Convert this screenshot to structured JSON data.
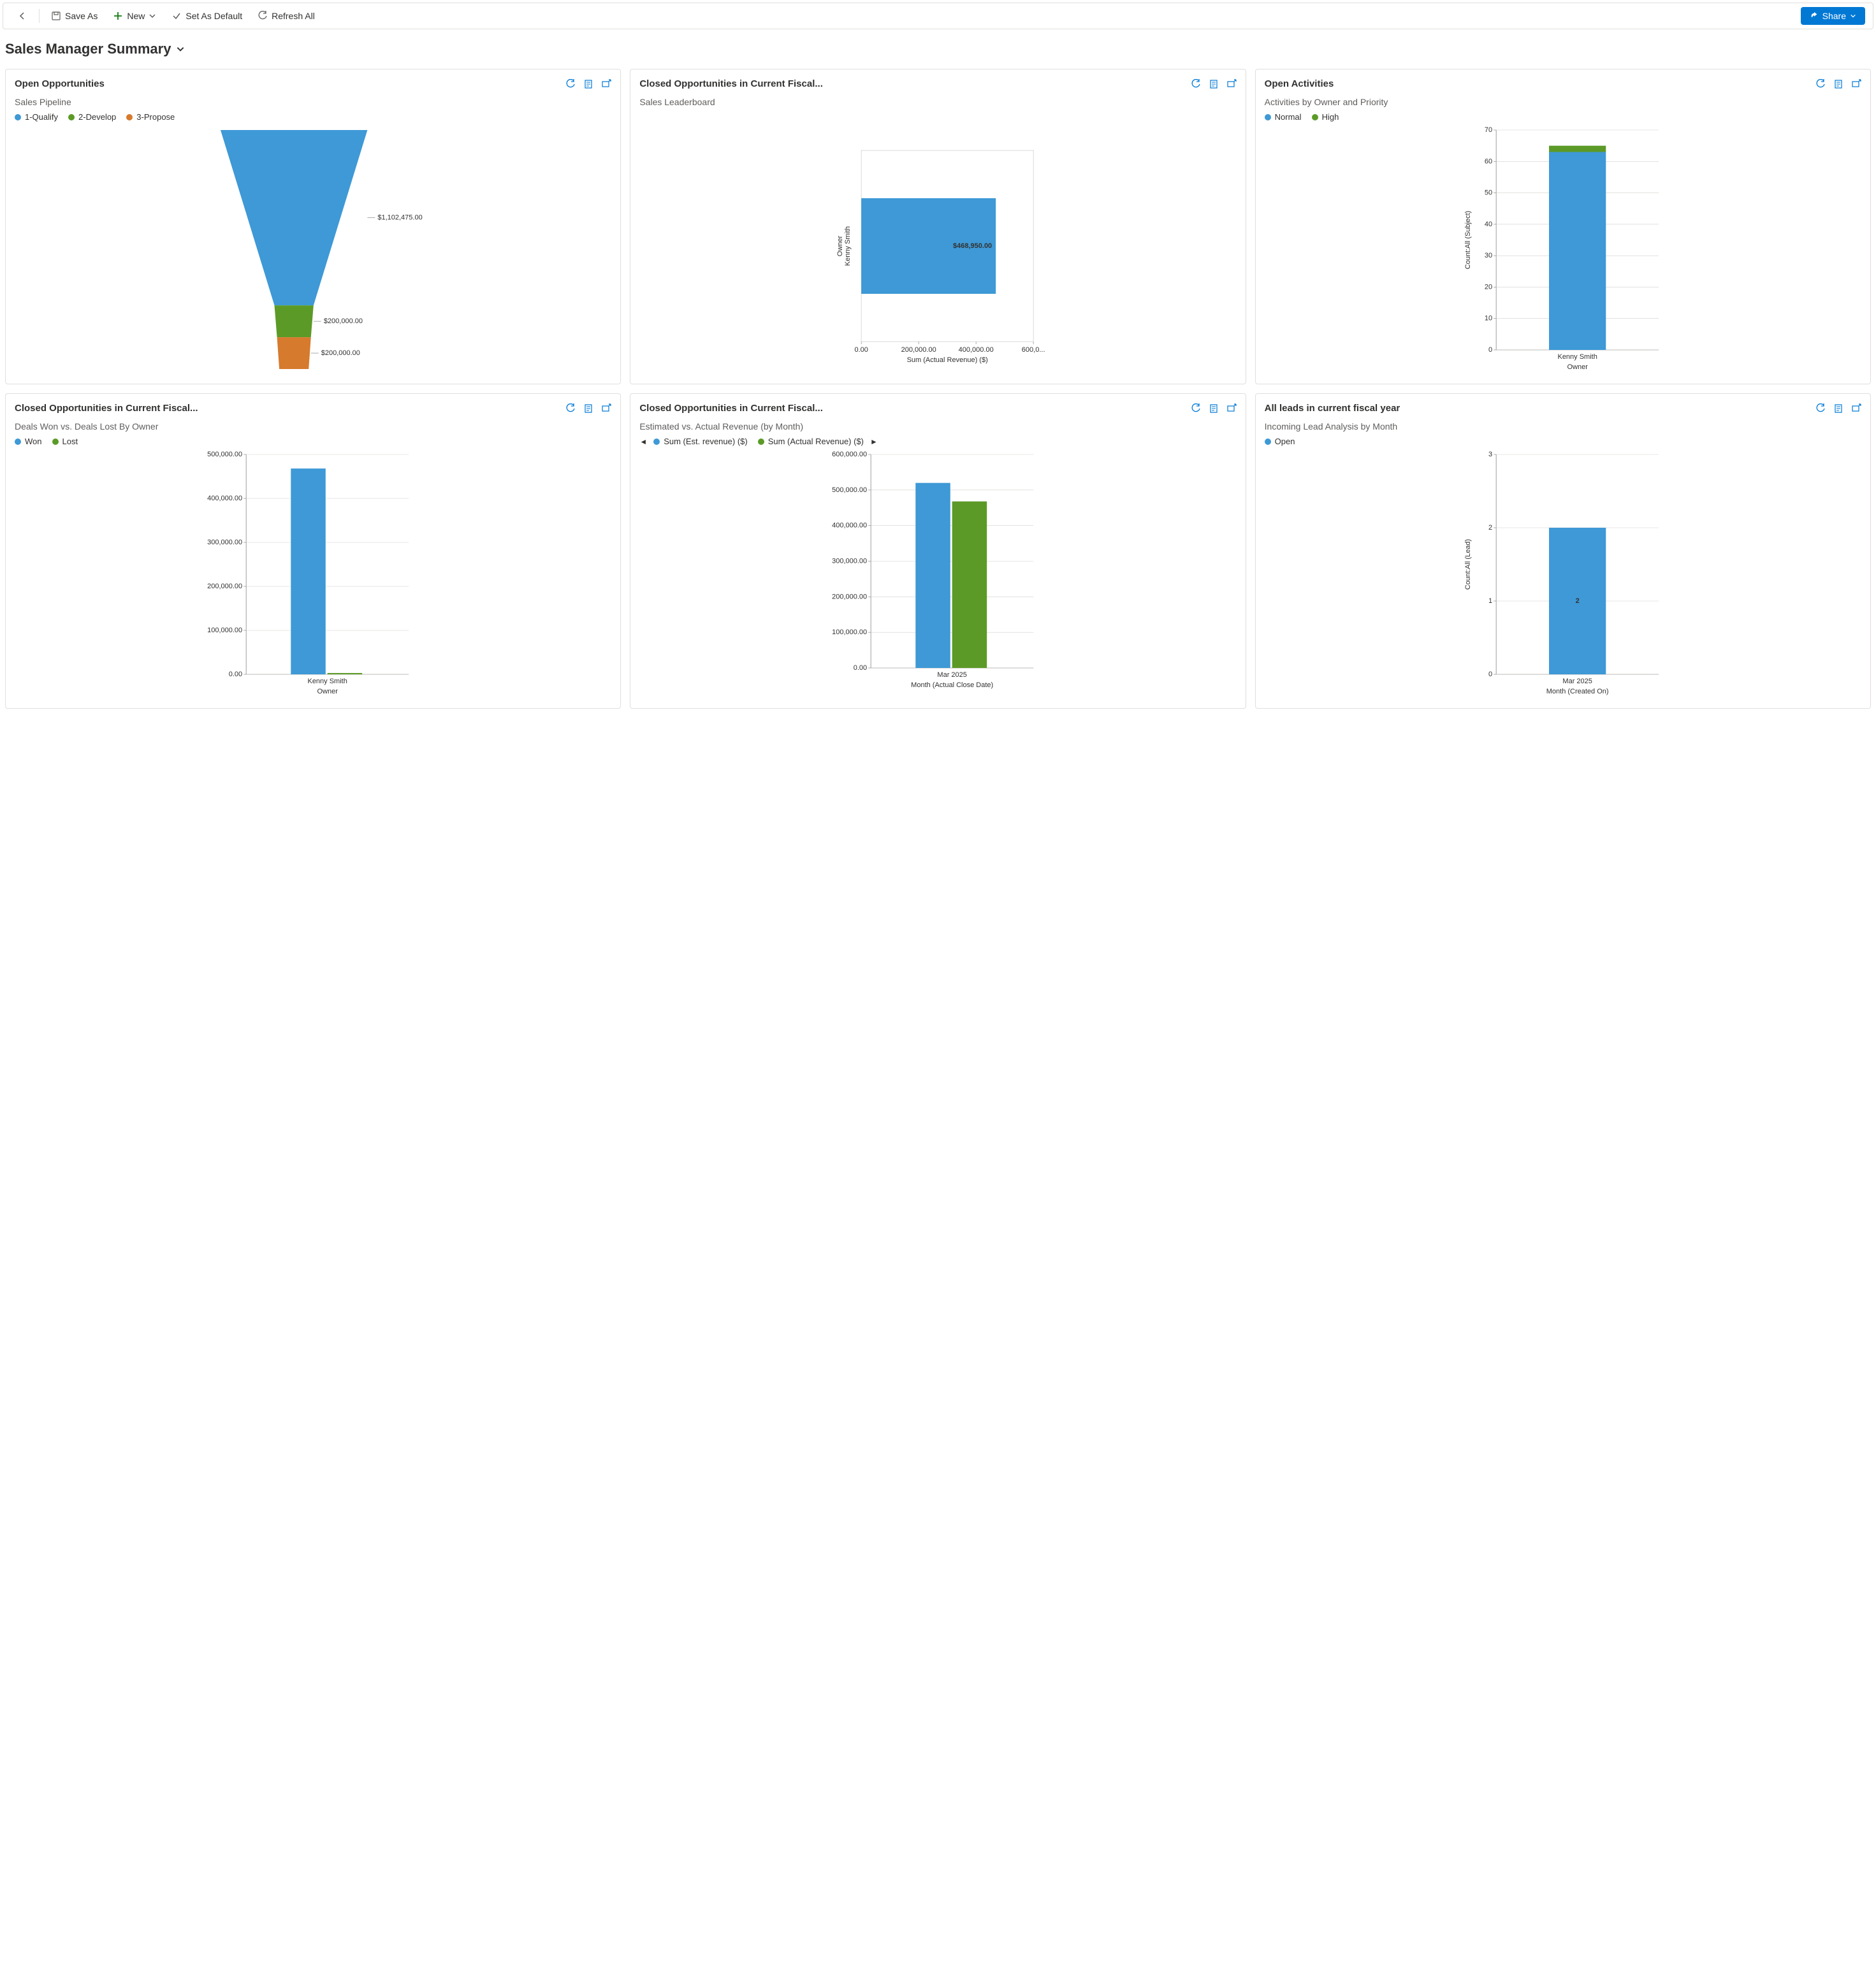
{
  "toolbar": {
    "back_label": "",
    "save_as": "Save As",
    "new": "New",
    "set_default": "Set As Default",
    "refresh_all": "Refresh All",
    "share": "Share"
  },
  "page": {
    "title": "Sales Manager Summary"
  },
  "colors": {
    "blue": "#3e99d6",
    "green": "#5c9a27",
    "orange": "#d67a2d",
    "action_blue": "#0078d4",
    "card_border": "#e1dfdd",
    "text_muted": "#605e5c",
    "text": "#323130",
    "grid_line": "#d2d0ce"
  },
  "cards": {
    "open_opportunities": {
      "title": "Open Opportunities",
      "subtitle": "Sales Pipeline",
      "legend": [
        {
          "label": "1-Qualify",
          "color": "#3e99d6"
        },
        {
          "label": "2-Develop",
          "color": "#5c9a27"
        },
        {
          "label": "3-Propose",
          "color": "#d67a2d"
        }
      ],
      "funnel": {
        "type": "funnel",
        "segments": [
          {
            "label": "$1,102,475.00",
            "value": 1102475,
            "color": "#3e99d6"
          },
          {
            "label": "$200,000.00",
            "value": 200000,
            "color": "#5c9a27"
          },
          {
            "label": "$200,000.00",
            "value": 200000,
            "color": "#d67a2d"
          }
        ],
        "top_width_frac": 0.72,
        "total_height": 380
      }
    },
    "closed_fiscal_leaderboard": {
      "title": "Closed Opportunities in Current Fiscal...",
      "subtitle": "Sales Leaderboard",
      "chart": {
        "type": "bar-horizontal",
        "y_categories": [
          "Kenny Smith"
        ],
        "values": [
          468950
        ],
        "value_labels": [
          "$468,950.00"
        ],
        "bar_color": "#3e99d6",
        "x_ticks": [
          "0.00",
          "200,000.00",
          "400,000.00",
          "600,0..."
        ],
        "x_tick_values": [
          0,
          200000,
          400000,
          600000
        ],
        "x_max": 600000,
        "x_title": "Sum (Actual Revenue) ($)",
        "y_title": "Owner"
      }
    },
    "open_activities": {
      "title": "Open Activities",
      "subtitle": "Activities by Owner and Priority",
      "legend": [
        {
          "label": "Normal",
          "color": "#3e99d6"
        },
        {
          "label": "High",
          "color": "#5c9a27"
        }
      ],
      "chart": {
        "type": "bar-stacked",
        "x_categories": [
          "Kenny Smith"
        ],
        "series": [
          {
            "name": "Normal",
            "color": "#3e99d6",
            "values": [
              63
            ]
          },
          {
            "name": "High",
            "color": "#5c9a27",
            "values": [
              2
            ]
          }
        ],
        "y_ticks": [
          0,
          10,
          20,
          30,
          40,
          50,
          60,
          70
        ],
        "y_max": 70,
        "y_title": "Count:All (Subject)",
        "x_title": "Owner"
      }
    },
    "deals_won_lost": {
      "title": "Closed Opportunities in Current Fiscal...",
      "subtitle": "Deals Won vs. Deals Lost By Owner",
      "legend": [
        {
          "label": "Won",
          "color": "#3e99d6"
        },
        {
          "label": "Lost",
          "color": "#5c9a27"
        }
      ],
      "chart": {
        "type": "bar-grouped",
        "x_categories": [
          "Kenny Smith"
        ],
        "series": [
          {
            "name": "Won",
            "color": "#3e99d6",
            "values": [
              468000
            ]
          },
          {
            "name": "Lost",
            "color": "#5c9a27",
            "values": [
              3000
            ]
          }
        ],
        "y_ticks": [
          "0.00",
          "100,000.00",
          "200,000.00",
          "300,000.00",
          "400,000.00",
          "500,000.00"
        ],
        "y_tick_values": [
          0,
          100000,
          200000,
          300000,
          400000,
          500000
        ],
        "y_max": 500000,
        "x_title": "Owner"
      }
    },
    "est_vs_actual": {
      "title": "Closed Opportunities in Current Fiscal...",
      "subtitle": "Estimated vs. Actual Revenue (by Month)",
      "legend": [
        {
          "label": "Sum (Est. revenue) ($)",
          "color": "#3e99d6"
        },
        {
          "label": "Sum (Actual Revenue) ($)",
          "color": "#5c9a27"
        }
      ],
      "chart": {
        "type": "bar-grouped",
        "x_categories": [
          "Mar 2025"
        ],
        "series": [
          {
            "name": "Sum (Est. revenue) ($)",
            "color": "#3e99d6",
            "values": [
              520000
            ]
          },
          {
            "name": "Sum (Actual Revenue) ($)",
            "color": "#5c9a27",
            "values": [
              468000
            ]
          }
        ],
        "y_ticks": [
          "0.00",
          "100,000.00",
          "200,000.00",
          "300,000.00",
          "400,000.00",
          "500,000.00",
          "600,000.00"
        ],
        "y_tick_values": [
          0,
          100000,
          200000,
          300000,
          400000,
          500000,
          600000
        ],
        "y_max": 600000,
        "x_title": "Month (Actual Close Date)"
      }
    },
    "leads": {
      "title": "All leads in current fiscal year",
      "subtitle": "Incoming Lead Analysis by Month",
      "legend": [
        {
          "label": "Open",
          "color": "#3e99d6"
        }
      ],
      "chart": {
        "type": "bar",
        "x_categories": [
          "Mar 2025"
        ],
        "values": [
          2
        ],
        "value_labels": [
          "2"
        ],
        "bar_color": "#3e99d6",
        "y_ticks": [
          0,
          1,
          2,
          3
        ],
        "y_max": 3,
        "y_title": "Count:All (Lead)",
        "x_title": "Month (Created On)"
      }
    }
  }
}
